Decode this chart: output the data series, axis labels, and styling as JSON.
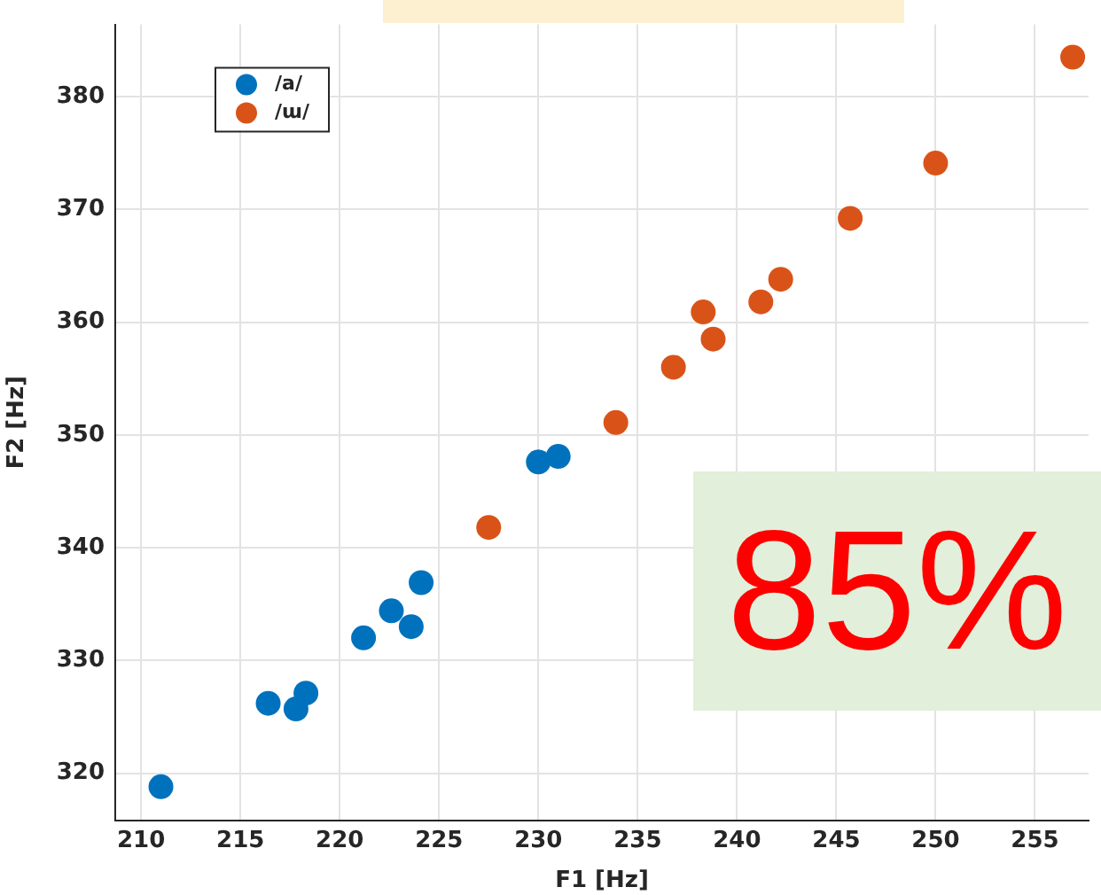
{
  "chart_data": {
    "type": "scatter",
    "xlabel": "F1 [Hz]",
    "ylabel": "F2 [Hz]",
    "xlim": [
      208.7,
      257.7
    ],
    "xticks": [
      210,
      215,
      220,
      225,
      230,
      235,
      240,
      245,
      250,
      255
    ],
    "ylim": [
      315.8,
      386.4
    ],
    "yticks": [
      320,
      330,
      340,
      350,
      360,
      370,
      380
    ],
    "grid": true,
    "legend": "top left",
    "marker": "circle",
    "annotations": [
      "85%"
    ],
    "series": [
      {
        "name": "/a/",
        "color": "#0072bd",
        "x": [
          211.0,
          216.4,
          217.8,
          218.3,
          221.2,
          222.6,
          223.6,
          224.1,
          230.0,
          231.0
        ],
        "values": [
          318.8,
          326.2,
          325.7,
          327.1,
          332.0,
          334.4,
          333.0,
          336.9,
          347.6,
          348.1
        ]
      },
      {
        "name": "/ɯ/",
        "color": "#d95319",
        "x": [
          227.5,
          233.9,
          236.8,
          238.3,
          238.8,
          241.2,
          242.2,
          245.7,
          250.0,
          256.9
        ],
        "values": [
          341.8,
          351.1,
          356.0,
          360.9,
          358.5,
          361.8,
          363.8,
          369.2,
          374.1,
          383.5
        ]
      }
    ]
  }
}
